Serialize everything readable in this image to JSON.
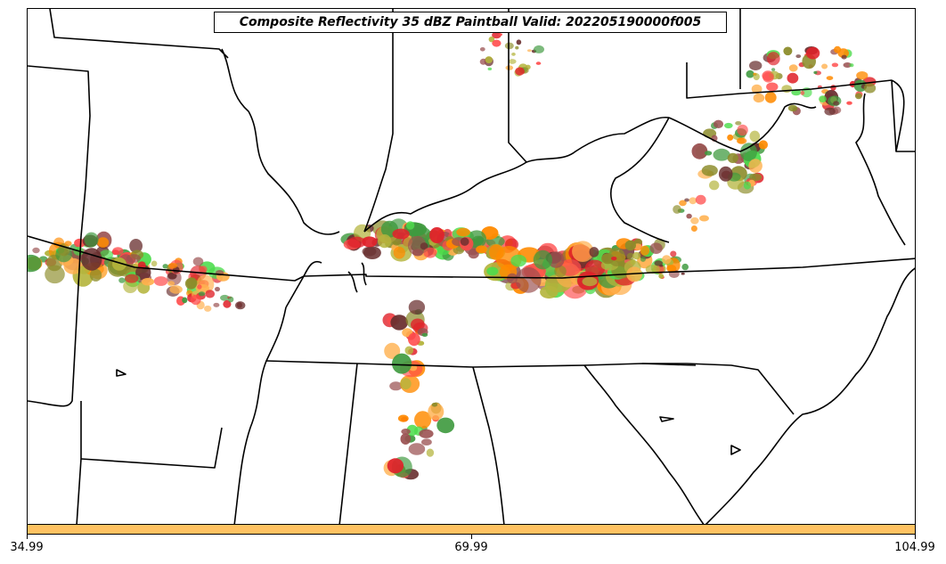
{
  "title": "Composite Reflectivity 35 dBZ Paintball Valid: 202205190000f005",
  "colorbar": {
    "color": "#ffc262",
    "ticks": [
      "34.99",
      "69.99",
      "104.99"
    ]
  },
  "member_colors": [
    "#ff4a4a",
    "#ff8a00",
    "#ffb04d",
    "#4cdc4c",
    "#3f9a3f",
    "#8c8c2a",
    "#9a5050",
    "#e0222a",
    "#6a3030",
    "#b4b43c"
  ]
}
